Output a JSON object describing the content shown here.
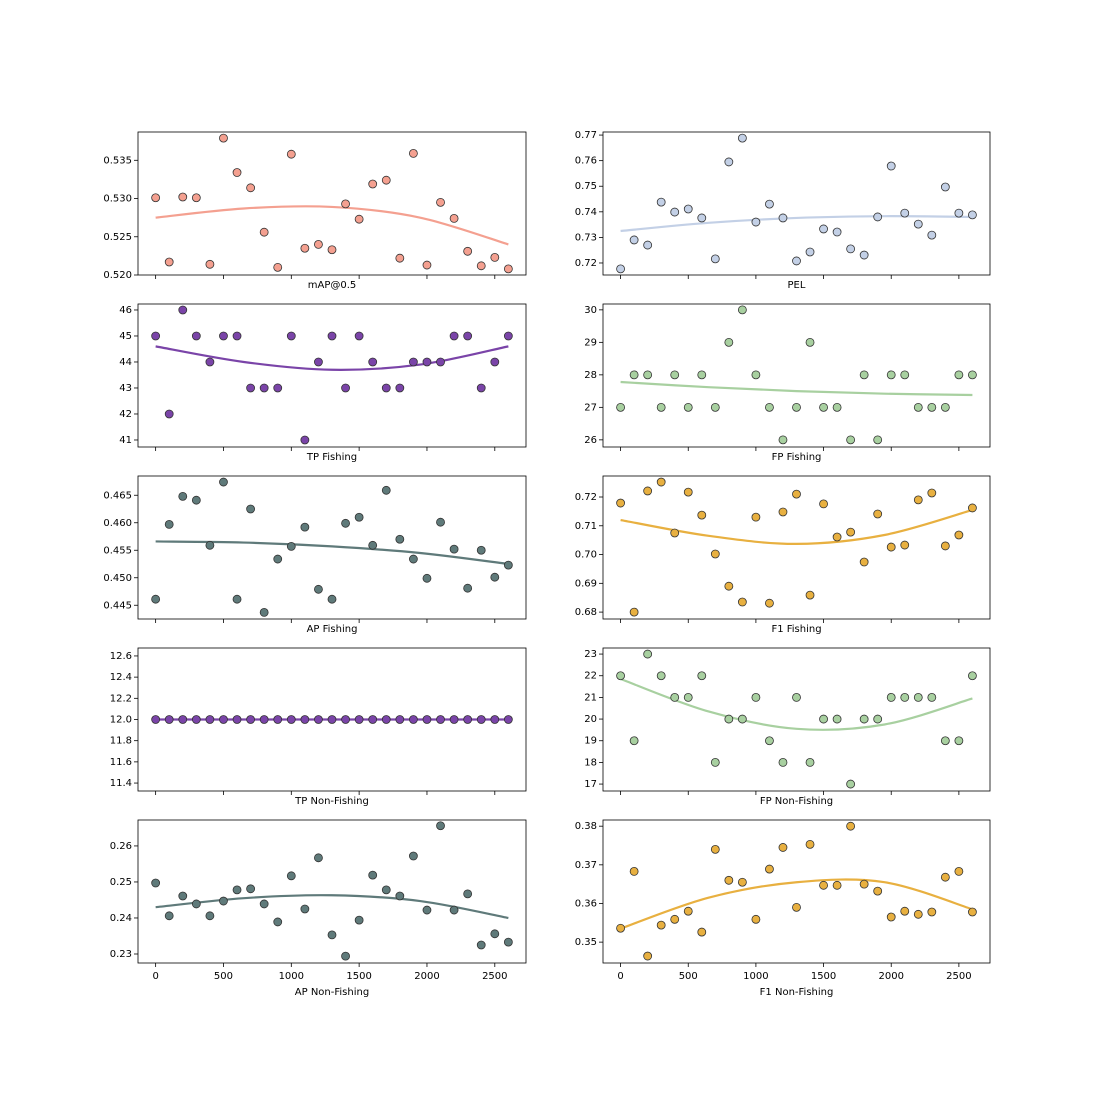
{
  "chart_data": [
    {
      "type": "scatter",
      "xlabel": "mAP@0.5",
      "color": "#f4a090",
      "show_xtick_labels": false,
      "x": [
        0,
        100,
        200,
        300,
        400,
        500,
        600,
        700,
        800,
        900,
        1000,
        1100,
        1200,
        1300,
        1400,
        1500,
        1600,
        1700,
        1800,
        1900,
        2000,
        2100,
        2200,
        2300,
        2400,
        2500,
        2600
      ],
      "values": [
        0.5301,
        0.5217,
        0.5302,
        0.5301,
        0.5214,
        0.5379,
        0.5334,
        0.5314,
        0.5256,
        0.521,
        0.5358,
        0.5235,
        0.524,
        0.5233,
        0.5293,
        0.5273,
        0.5319,
        0.5324,
        0.5222,
        0.5359,
        0.5213,
        0.5295,
        0.5274,
        0.5231,
        0.5212,
        0.5223,
        0.5208
      ],
      "fit_x": [
        0,
        650,
        1300,
        1950,
        2600
      ],
      "fit_values": [
        0.5275,
        0.5287,
        0.5289,
        0.5275,
        0.524
      ],
      "xlim": [
        -130,
        2730
      ],
      "xticks": [
        0,
        500,
        1000,
        1500,
        2000,
        2500
      ],
      "ylim": [
        0.52,
        0.5387
      ],
      "yticks": [
        {
          "value": 0.52,
          "label": "0.520"
        },
        0.525,
        {
          "value": 0.53,
          "label": "0.530"
        },
        0.535
      ]
    },
    {
      "type": "scatter",
      "xlabel": "PEL",
      "color": "#c3d0e6",
      "show_xtick_labels": false,
      "x": [
        0,
        100,
        200,
        300,
        400,
        500,
        600,
        700,
        800,
        900,
        1000,
        1100,
        1200,
        1300,
        1400,
        1500,
        1600,
        1700,
        1800,
        1900,
        2000,
        2100,
        2200,
        2300,
        2400,
        2500,
        2600
      ],
      "values": [
        0.7177,
        0.729,
        0.727,
        0.7438,
        0.7399,
        0.7411,
        0.7376,
        0.7216,
        0.7595,
        0.7688,
        0.736,
        0.743,
        0.7376,
        0.7208,
        0.7243,
        0.7333,
        0.7321,
        0.7255,
        0.7231,
        0.738,
        0.7579,
        0.7395,
        0.7352,
        0.7309,
        0.7497,
        0.7395,
        0.7388
      ],
      "fit_x": [
        0,
        650,
        1300,
        1950,
        2600
      ],
      "fit_values": [
        0.7325,
        0.7357,
        0.7376,
        0.7383,
        0.738
      ],
      "xlim": [
        -130,
        2730
      ],
      "xticks": [
        0,
        500,
        1000,
        1500,
        2000,
        2500
      ],
      "ylim": [
        0.7153,
        0.7712
      ],
      "yticks": [
        0.72,
        0.73,
        0.74,
        0.75,
        0.76,
        0.77
      ]
    },
    {
      "type": "scatter",
      "xlabel": "TP Fishing",
      "color": "#7a44a8",
      "show_xtick_labels": false,
      "x": [
        0,
        100,
        200,
        300,
        400,
        500,
        600,
        700,
        800,
        900,
        1000,
        1100,
        1200,
        1300,
        1400,
        1500,
        1600,
        1700,
        1800,
        1900,
        2000,
        2100,
        2200,
        2300,
        2400,
        2500,
        2600
      ],
      "values": [
        45,
        42,
        46,
        45,
        44,
        45,
        45,
        43,
        43,
        43,
        45,
        41,
        44,
        45,
        43,
        45,
        44,
        43,
        43,
        44,
        44,
        44,
        45,
        45,
        43,
        44,
        45
      ],
      "fit_x": [
        0,
        650,
        1300,
        1950,
        2600
      ],
      "fit_values": [
        44.6,
        44.0,
        43.7,
        43.9,
        44.6
      ],
      "xlim": [
        -130,
        2730
      ],
      "xticks": [
        0,
        500,
        1000,
        1500,
        2000,
        2500
      ],
      "ylim": [
        40.73,
        46.23
      ],
      "yticks": [
        41,
        42,
        43,
        44,
        45,
        46
      ]
    },
    {
      "type": "scatter",
      "xlabel": "FP Fishing",
      "color": "#a8d0a0",
      "show_xtick_labels": false,
      "x": [
        0,
        100,
        200,
        300,
        400,
        500,
        600,
        700,
        800,
        900,
        1000,
        1100,
        1200,
        1300,
        1400,
        1500,
        1600,
        1700,
        1800,
        1900,
        2000,
        2100,
        2200,
        2300,
        2400,
        2500,
        2600
      ],
      "values": [
        27,
        28,
        28,
        27,
        28,
        27,
        28,
        27,
        29,
        30,
        28,
        27,
        26,
        27,
        29,
        27,
        27,
        26,
        28,
        26,
        28,
        28,
        27,
        27,
        27,
        28,
        28
      ],
      "fit_x": [
        0,
        650,
        1300,
        1950,
        2600
      ],
      "fit_values": [
        27.78,
        27.62,
        27.5,
        27.42,
        27.38
      ],
      "xlim": [
        -130,
        2730
      ],
      "xticks": [
        0,
        500,
        1000,
        1500,
        2000,
        2500
      ],
      "ylim": [
        25.78,
        30.18
      ],
      "yticks": [
        26,
        27,
        28,
        29,
        30
      ]
    },
    {
      "type": "scatter",
      "xlabel": "AP Fishing",
      "color": "#5f7a7a",
      "show_xtick_labels": false,
      "x": [
        0,
        100,
        200,
        300,
        400,
        500,
        600,
        700,
        800,
        900,
        1000,
        1100,
        1200,
        1300,
        1400,
        1500,
        1600,
        1700,
        1800,
        1900,
        2000,
        2100,
        2200,
        2300,
        2400,
        2500,
        2600
      ],
      "values": [
        0.4461,
        0.4597,
        0.4648,
        0.4641,
        0.4559,
        0.4674,
        0.4461,
        0.4625,
        0.4437,
        0.4534,
        0.4557,
        0.4592,
        0.4479,
        0.4461,
        0.4599,
        0.461,
        0.4559,
        0.4659,
        0.457,
        0.4534,
        0.4499,
        0.4601,
        0.4552,
        0.4481,
        0.455,
        0.4501,
        0.4523
      ],
      "fit_x": [
        0,
        650,
        1300,
        1950,
        2600
      ],
      "fit_values": [
        0.4566,
        0.4564,
        0.4557,
        0.4545,
        0.4525
      ],
      "xlim": [
        -130,
        2730
      ],
      "xticks": [
        0,
        500,
        1000,
        1500,
        2000,
        2500
      ],
      "ylim": [
        0.4425,
        0.4685
      ],
      "yticks": [
        0.445,
        {
          "value": 0.45,
          "label": "0.450"
        },
        0.455,
        {
          "value": 0.46,
          "label": "0.460"
        },
        0.465
      ]
    },
    {
      "type": "scatter",
      "xlabel": "F1 Fishing",
      "color": "#e8b040",
      "show_xtick_labels": false,
      "x": [
        0,
        100,
        200,
        300,
        400,
        500,
        600,
        700,
        800,
        900,
        1000,
        1100,
        1200,
        1300,
        1400,
        1500,
        1600,
        1700,
        1800,
        1900,
        2000,
        2100,
        2200,
        2300,
        2400,
        2500,
        2600
      ],
      "values": [
        0.7179,
        0.68,
        0.7221,
        0.7252,
        0.7075,
        0.7217,
        0.7137,
        0.7002,
        0.689,
        0.6835,
        0.713,
        0.6831,
        0.7148,
        0.721,
        0.6859,
        0.7176,
        0.7061,
        0.7078,
        0.6974,
        0.7141,
        0.7026,
        0.7033,
        0.719,
        0.7214,
        0.703,
        0.7068,
        0.7162
      ],
      "fit_x": [
        0,
        650,
        1300,
        1950,
        2600
      ],
      "fit_values": [
        0.712,
        0.7065,
        0.7037,
        0.7068,
        0.7155
      ],
      "xlim": [
        -130,
        2730
      ],
      "xticks": [
        0,
        500,
        1000,
        1500,
        2000,
        2500
      ],
      "ylim": [
        0.6776,
        0.7273
      ],
      "yticks": [
        0.68,
        0.69,
        {
          "value": 0.7,
          "label": "0.70"
        },
        0.71,
        0.72
      ]
    },
    {
      "type": "scatter",
      "xlabel": "TP Non-Fishing",
      "color": "#7a44a8",
      "show_xtick_labels": false,
      "x": [
        0,
        100,
        200,
        300,
        400,
        500,
        600,
        700,
        800,
        900,
        1000,
        1100,
        1200,
        1300,
        1400,
        1500,
        1600,
        1700,
        1800,
        1900,
        2000,
        2100,
        2200,
        2300,
        2400,
        2500,
        2600
      ],
      "values": [
        12,
        12,
        12,
        12,
        12,
        12,
        12,
        12,
        12,
        12,
        12,
        12,
        12,
        12,
        12,
        12,
        12,
        12,
        12,
        12,
        12,
        12,
        12,
        12,
        12,
        12,
        12
      ],
      "fit_x": [
        0,
        650,
        1300,
        1950,
        2600
      ],
      "fit_values": [
        12,
        12,
        12,
        12,
        12
      ],
      "xlim": [
        -130,
        2730
      ],
      "xticks": [
        0,
        500,
        1000,
        1500,
        2000,
        2500
      ],
      "ylim": [
        11.325,
        12.675
      ],
      "yticks": [
        11.4,
        11.6,
        11.8,
        {
          "value": 12,
          "label": "12.0"
        },
        12.2,
        12.4,
        12.6
      ]
    },
    {
      "type": "scatter",
      "xlabel": "FP Non-Fishing",
      "color": "#a8d0a0",
      "show_xtick_labels": false,
      "x": [
        0,
        100,
        200,
        300,
        400,
        500,
        600,
        700,
        800,
        900,
        1000,
        1100,
        1200,
        1300,
        1400,
        1500,
        1600,
        1700,
        1800,
        1900,
        2000,
        2100,
        2200,
        2300,
        2400,
        2500,
        2600
      ],
      "values": [
        22,
        19,
        23,
        22,
        21,
        21,
        22,
        18,
        20,
        20,
        21,
        19,
        18,
        21,
        18,
        20,
        20,
        17,
        20,
        20,
        21,
        21,
        21,
        21,
        19,
        19,
        22
      ],
      "fit_x": [
        0,
        650,
        1300,
        1950,
        2600
      ],
      "fit_values": [
        21.85,
        20.35,
        19.55,
        19.75,
        20.95
      ],
      "xlim": [
        -130,
        2730
      ],
      "xticks": [
        0,
        500,
        1000,
        1500,
        2000,
        2500
      ],
      "ylim": [
        16.68,
        23.28
      ],
      "yticks": [
        17,
        18,
        19,
        20,
        21,
        22,
        23
      ]
    },
    {
      "type": "scatter",
      "xlabel": "AP Non-Fishing",
      "color": "#5f7a7a",
      "show_xtick_labels": true,
      "x": [
        0,
        100,
        200,
        300,
        400,
        500,
        600,
        700,
        800,
        900,
        1000,
        1100,
        1200,
        1300,
        1400,
        1500,
        1600,
        1700,
        1800,
        1900,
        2000,
        2100,
        2200,
        2300,
        2400,
        2500,
        2600
      ],
      "values": [
        0.2497,
        0.2406,
        0.2461,
        0.2439,
        0.2406,
        0.2447,
        0.2478,
        0.2481,
        0.2439,
        0.2389,
        0.2517,
        0.2425,
        0.2567,
        0.2353,
        0.2294,
        0.2394,
        0.2519,
        0.2478,
        0.2461,
        0.2572,
        0.2422,
        0.2656,
        0.2422,
        0.2467,
        0.2325,
        0.2356,
        0.2333
      ],
      "fit_x": [
        0,
        650,
        1300,
        1950,
        2600
      ],
      "fit_values": [
        0.243,
        0.2455,
        0.2463,
        0.2447,
        0.24
      ],
      "xlim": [
        -130,
        2730
      ],
      "xticks": [
        0,
        500,
        1000,
        1500,
        2000,
        2500
      ],
      "ylim": [
        0.2275,
        0.2672
      ],
      "yticks": [
        0.23,
        0.24,
        0.25,
        0.26
      ]
    },
    {
      "type": "scatter",
      "xlabel": "F1 Non-Fishing",
      "color": "#e8b040",
      "show_xtick_labels": true,
      "x": [
        0,
        100,
        200,
        300,
        400,
        500,
        600,
        700,
        800,
        900,
        1000,
        1100,
        1200,
        1300,
        1400,
        1500,
        1600,
        1700,
        1800,
        1900,
        2000,
        2100,
        2200,
        2300,
        2400,
        2500,
        2600
      ],
      "values": [
        0.3536,
        0.3683,
        0.3464,
        0.3544,
        0.3559,
        0.358,
        0.3526,
        0.374,
        0.366,
        0.3655,
        0.3559,
        0.3689,
        0.3745,
        0.359,
        0.3753,
        0.3647,
        0.3647,
        0.38,
        0.365,
        0.3632,
        0.3565,
        0.358,
        0.3572,
        0.3578,
        0.3668,
        0.3683,
        0.3578
      ],
      "fit_x": [
        0,
        650,
        1300,
        1950,
        2600
      ],
      "fit_values": [
        0.3535,
        0.3615,
        0.3655,
        0.3655,
        0.3585
      ],
      "xlim": [
        -130,
        2730
      ],
      "xticks": [
        0,
        500,
        1000,
        1500,
        2000,
        2500
      ],
      "ylim": [
        0.3446,
        0.3816
      ],
      "yticks": [
        0.35,
        0.36,
        0.37,
        0.38
      ]
    }
  ]
}
